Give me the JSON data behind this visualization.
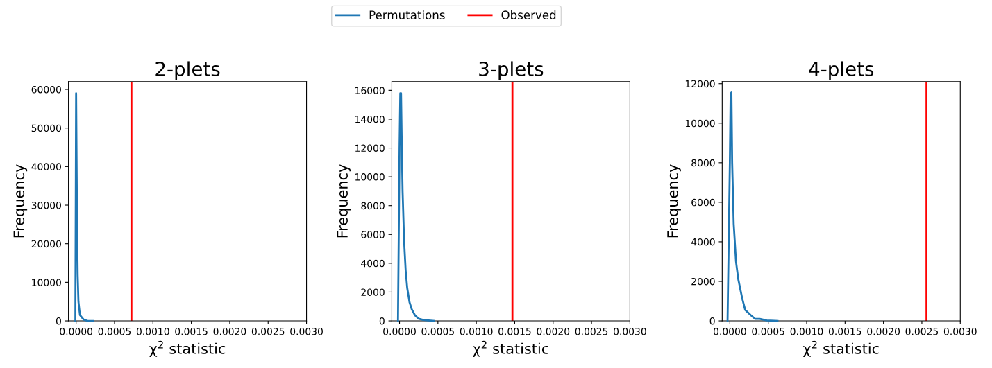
{
  "chart_data": [
    {
      "type": "line",
      "title": "2-plets",
      "xlabel": "χ$^{2}$ statistic",
      "ylabel": "Frequency",
      "legend": "top",
      "xlim": [
        -0.0001,
        0.003
      ],
      "xticks": [
        {
          "value": 0,
          "label": "0.0000"
        },
        {
          "value": 0.0005,
          "label": "0.0005"
        },
        {
          "value": 0.001,
          "label": "0.0010"
        },
        {
          "value": 0.0015,
          "label": "0.0015"
        },
        {
          "value": 0.002,
          "label": "0.0020"
        },
        {
          "value": 0.0025,
          "label": "0.0025"
        },
        {
          "value": 0.003,
          "label": "0.0030"
        }
      ],
      "ylim": [
        0,
        62000
      ],
      "yticks": [
        0,
        10000,
        20000,
        30000,
        40000,
        50000,
        60000
      ],
      "series": [
        {
          "name": "Permutations",
          "color": "#1f77b4",
          "x": [
            -1e-05,
            0.0,
            1e-05,
            2e-05,
            3e-05,
            5e-05,
            0.0001,
            0.00015,
            0.00022
          ],
          "values": [
            0,
            59000,
            30000,
            12000,
            5000,
            1500,
            300,
            0,
            0
          ]
        }
      ],
      "ref_lines": [
        {
          "axis": "x",
          "value": 0.00072,
          "label": "Observed",
          "color": "#ff0000"
        }
      ]
    },
    {
      "type": "line",
      "title": "3-plets",
      "xlabel": "χ$^{2}$ statistic",
      "ylabel": "Frequency",
      "legend": "top",
      "xlim": [
        -0.0001,
        0.003
      ],
      "xticks": [
        {
          "value": 0,
          "label": "0.0000"
        },
        {
          "value": 0.0005,
          "label": "0.0005"
        },
        {
          "value": 0.001,
          "label": "0.0010"
        },
        {
          "value": 0.0015,
          "label": "0.0015"
        },
        {
          "value": 0.002,
          "label": "0.0020"
        },
        {
          "value": 0.0025,
          "label": "0.0025"
        },
        {
          "value": 0.003,
          "label": "0.0030"
        }
      ],
      "ylim": [
        0,
        16600
      ],
      "yticks": [
        0,
        2000,
        4000,
        6000,
        8000,
        10000,
        12000,
        14000,
        16000
      ],
      "series": [
        {
          "name": "Permutations",
          "color": "#1f77b4",
          "x": [
            -2e-05,
            0.0,
            1e-05,
            2e-05,
            3e-05,
            4e-05,
            6e-05,
            8e-05,
            0.0001,
            0.00013,
            0.00016,
            0.0002,
            0.00025,
            0.0003,
            0.00035,
            0.00045
          ],
          "values": [
            0,
            12000,
            15800,
            15800,
            12000,
            9000,
            5500,
            3500,
            2300,
            1300,
            800,
            400,
            150,
            80,
            40,
            0
          ]
        }
      ],
      "ref_lines": [
        {
          "axis": "x",
          "value": 0.00147,
          "color": "#ff0000"
        }
      ]
    },
    {
      "type": "line",
      "title": "4-plets",
      "xlabel": "χ$^{2}$ statistic",
      "ylabel": "Frequency",
      "legend": "top",
      "xlim": [
        -0.0001,
        0.003
      ],
      "xticks": [
        {
          "value": 0,
          "label": "0.0000"
        },
        {
          "value": 0.0005,
          "label": "0.0005"
        },
        {
          "value": 0.001,
          "label": "0.0010"
        },
        {
          "value": 0.0015,
          "label": "0.0015"
        },
        {
          "value": 0.002,
          "label": "0.0020"
        },
        {
          "value": 0.0025,
          "label": "0.0025"
        },
        {
          "value": 0.003,
          "label": "0.0030"
        }
      ],
      "ylim": [
        0,
        12100
      ],
      "yticks": [
        0,
        2000,
        4000,
        6000,
        8000,
        10000,
        12000
      ],
      "series": [
        {
          "name": "Permutations",
          "color": "#1f77b4",
          "x": [
            -3e-05,
            0.0,
            1e-05,
            2e-05,
            3e-05,
            5e-05,
            8e-05,
            0.00011,
            0.00016,
            0.0002,
            0.00027,
            0.00033,
            0.00039,
            0.00048,
            0.00062
          ],
          "values": [
            0,
            8000,
            11500,
            11550,
            8000,
            4900,
            3000,
            2100,
            1150,
            550,
            300,
            100,
            100,
            20,
            0
          ]
        }
      ],
      "ref_lines": [
        {
          "axis": "x",
          "value": 0.00256,
          "color": "#ff0000"
        }
      ]
    }
  ]
}
